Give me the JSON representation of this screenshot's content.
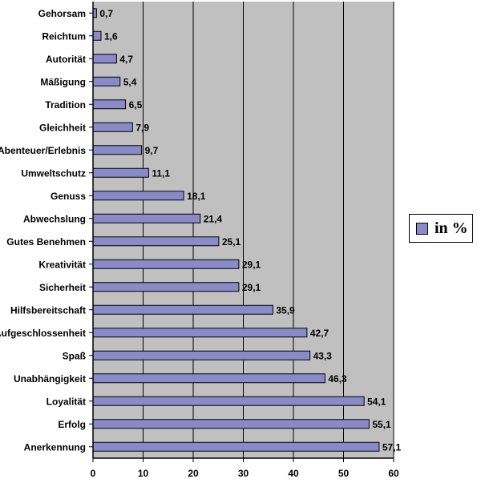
{
  "chart_data": {
    "type": "bar",
    "orientation": "horizontal",
    "categories": [
      "Gehorsam",
      "Reichtum",
      "Autorität",
      "Mäßigung",
      "Tradition",
      "Gleichheit",
      "Abenteuer/Erlebnis",
      "Umweltschutz",
      "Genuss",
      "Abwechslung",
      "Gutes Benehmen",
      "Kreativität",
      "Sicherheit",
      "Hilfsbereitschaft",
      "Aufgeschlossenheit",
      "Spaß",
      "Unabhängigkeit",
      "Loyalität",
      "Erfolg",
      "Anerkennung"
    ],
    "series": [
      {
        "name": "in %",
        "values": [
          0.7,
          1.6,
          4.7,
          5.4,
          6.5,
          7.9,
          9.7,
          11.1,
          18.1,
          21.4,
          25.1,
          29.1,
          29.1,
          35.9,
          42.7,
          43.3,
          46.3,
          54.1,
          55.1,
          57.1
        ],
        "value_labels": [
          "0,7",
          "1,6",
          "4,7",
          "5,4",
          "6,5",
          "7,9",
          "9,7",
          "11,1",
          "18,1",
          "21,4",
          "25,1",
          "29,1",
          "29,1",
          "35,9",
          "42,7",
          "43,3",
          "46,3",
          "54,1",
          "55,1",
          "57,1"
        ]
      }
    ],
    "xticks": [
      "0",
      "10",
      "20",
      "30",
      "40",
      "50",
      "60"
    ],
    "xlim": [
      0,
      60
    ],
    "grid": true,
    "legend_position": "right",
    "colors": {
      "bar": "#8a8ac8",
      "plot_bg": "#c0c0c0",
      "grid": "#000000"
    }
  }
}
